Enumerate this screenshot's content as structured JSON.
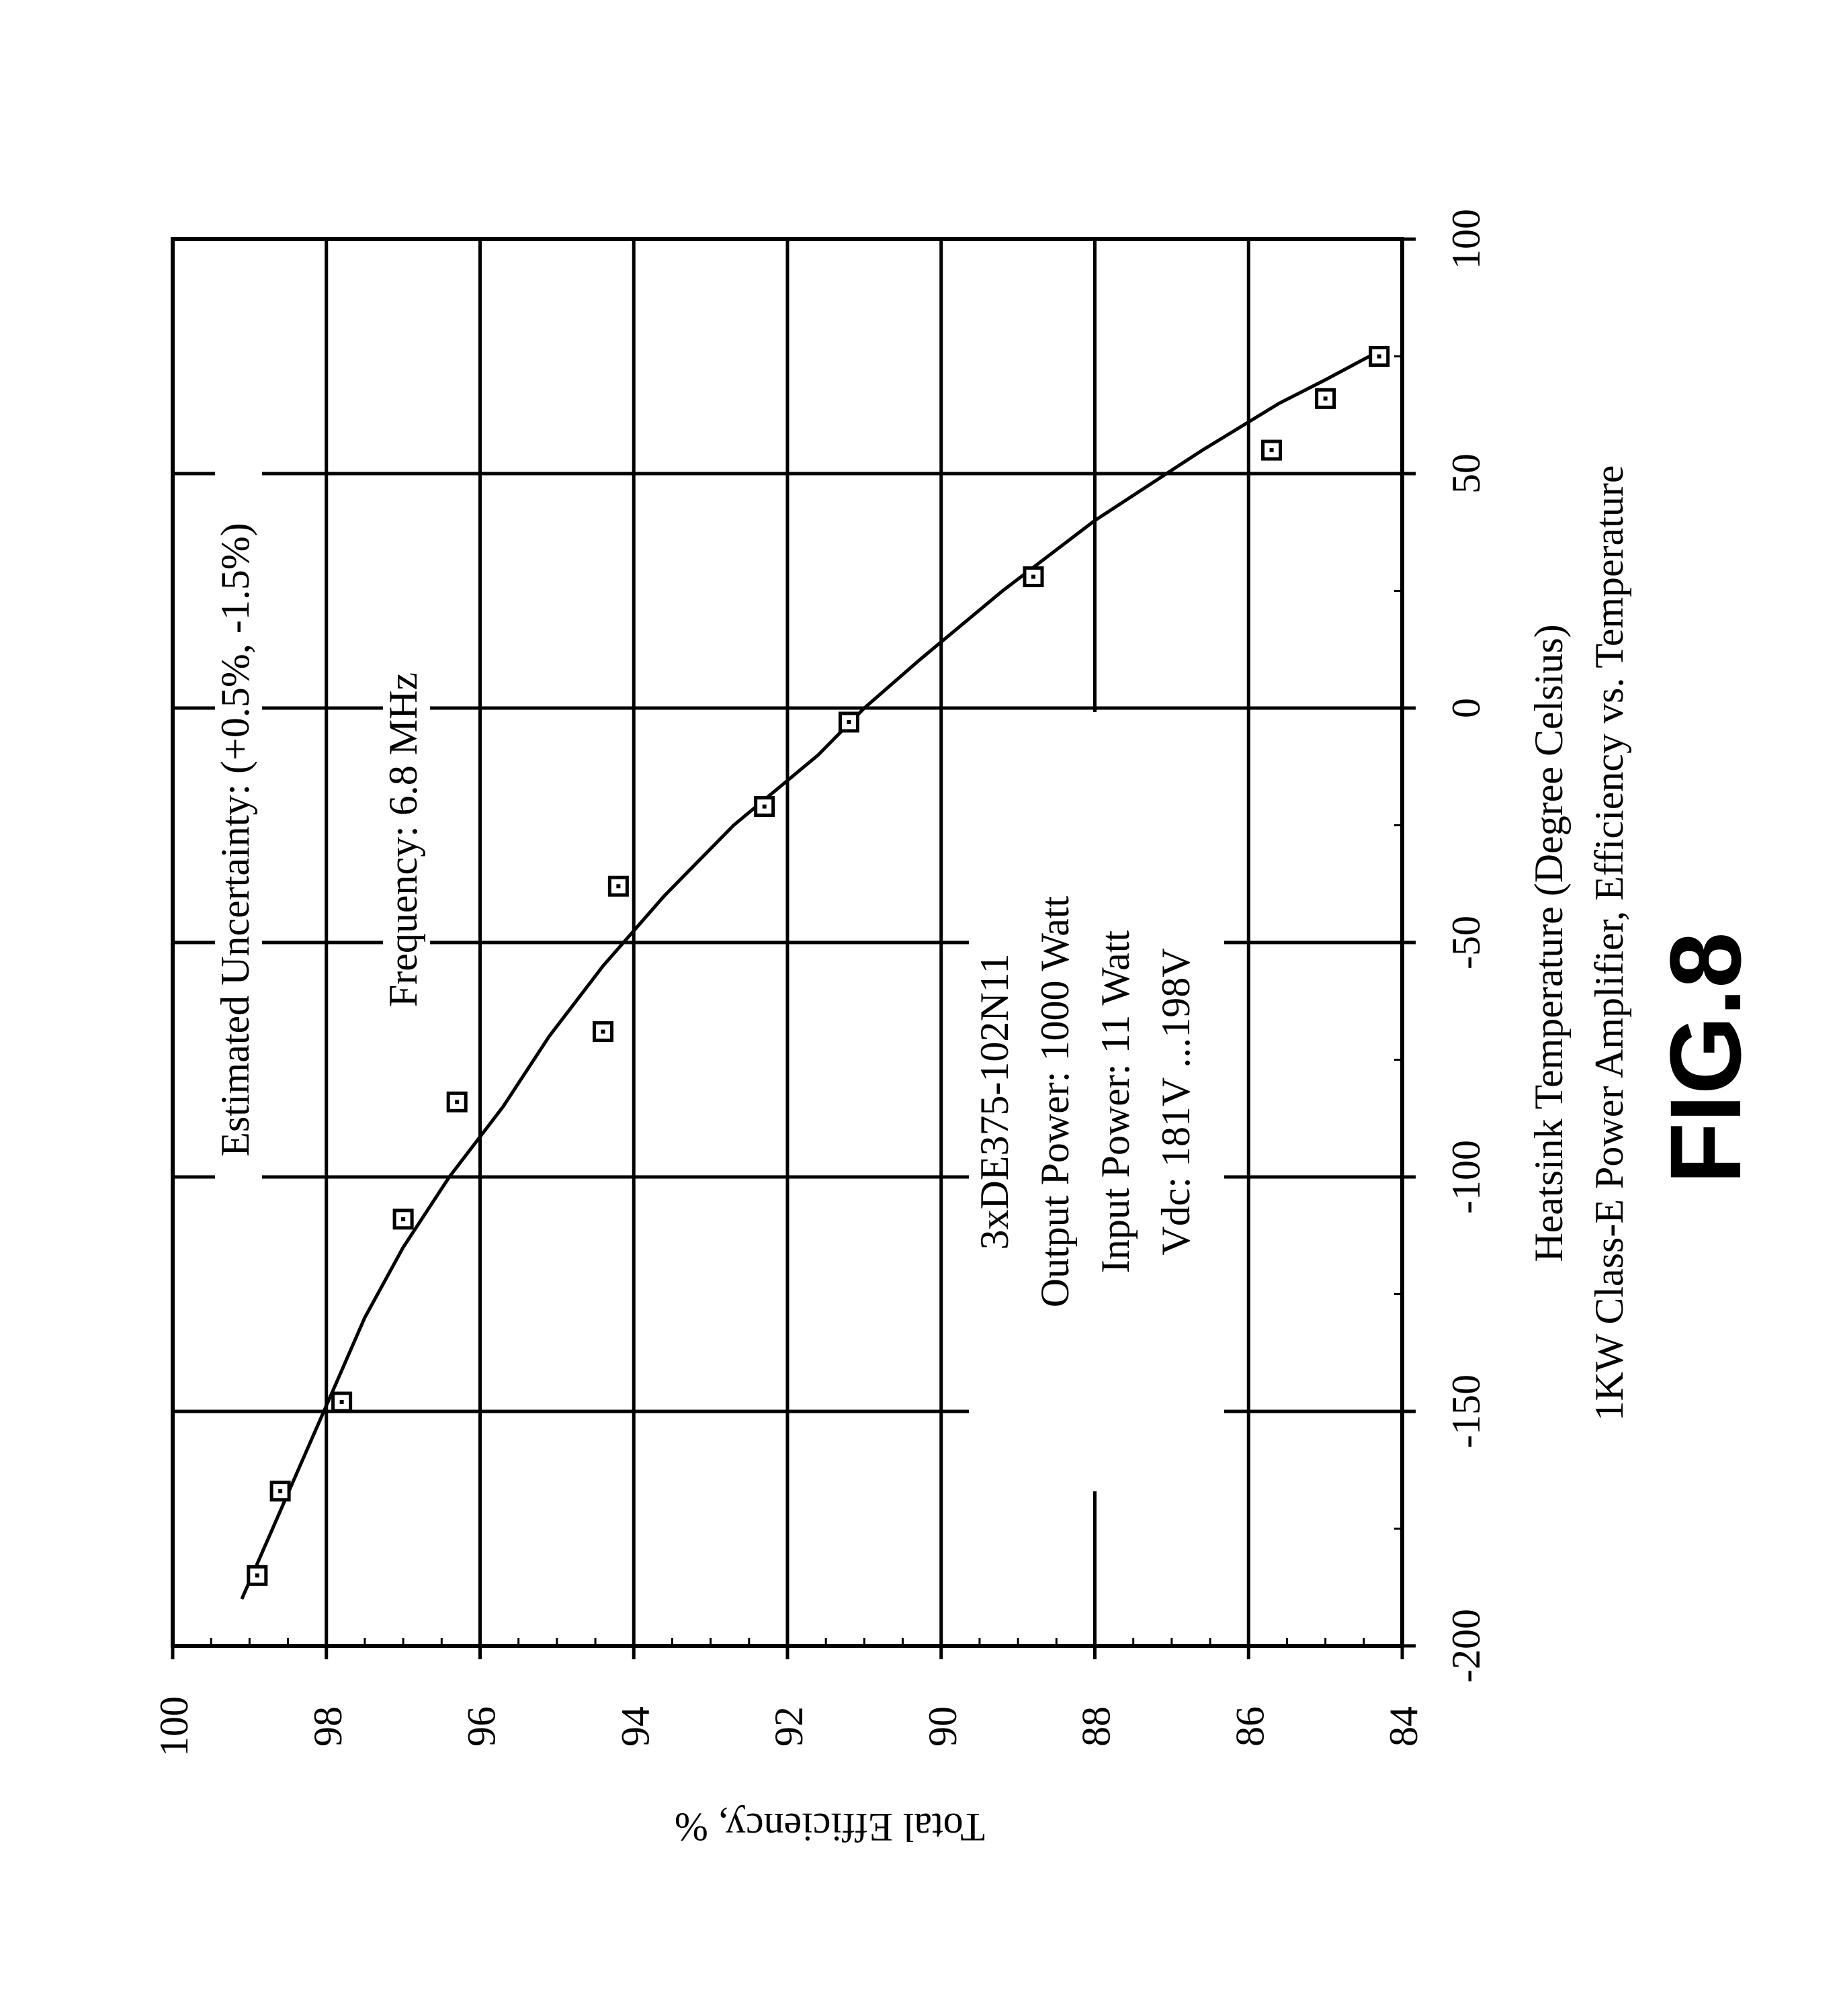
{
  "figure_label": "FIG.8",
  "chart_data": {
    "type": "scatter",
    "title": "1KW Class-E Power Amplifier, Efficiency vs. Temperature",
    "xlabel": "Heatsink Temperature (Degree Celsius)",
    "ylabel": "Total Efficiency, %",
    "xlim": [
      -200,
      100
    ],
    "ylim": [
      84,
      100
    ],
    "x_ticks": [
      -200,
      -150,
      -100,
      -50,
      0,
      50,
      100
    ],
    "y_ticks": [
      84,
      86,
      88,
      90,
      92,
      94,
      96,
      98,
      100
    ],
    "x_tick_labels": [
      "-200",
      "-150",
      "-100",
      "-50",
      "0",
      "50",
      "100"
    ],
    "y_tick_labels": [
      "84",
      "86",
      "88",
      "90",
      "92",
      "94",
      "96",
      "98",
      "100"
    ],
    "grid": true,
    "series": [
      {
        "marker": "square",
        "x": [
          -185,
          -167,
          -148,
          -109,
          -84,
          -69,
          -38,
          -21,
          -3,
          28,
          55,
          66,
          75
        ],
        "y": [
          98.9,
          98.6,
          97.8,
          97.0,
          96.3,
          94.4,
          94.2,
          92.3,
          91.2,
          88.8,
          85.7,
          85.0,
          84.3
        ]
      },
      {
        "style": "line",
        "x": [
          -190,
          -175,
          -160,
          -145,
          -130,
          -115,
          -100,
          -85,
          -70,
          -55,
          -40,
          -25,
          -10,
          0,
          10,
          25,
          40,
          55,
          65,
          70,
          77
        ],
        "y": [
          99.1,
          98.7,
          98.3,
          97.9,
          97.5,
          97.0,
          96.4,
          95.7,
          95.1,
          94.4,
          93.6,
          92.7,
          91.6,
          91.0,
          90.3,
          89.2,
          88.0,
          86.6,
          85.6,
          85.0,
          84.2
        ]
      }
    ],
    "annotations": [
      "Estimated Uncertainty: (+0.5%, -1.5%)",
      "Frequency: 6.8 MHz",
      "3xDE375-102N11",
      "Output Power: 1000 Watt",
      "Input Power: 11 Watt",
      "Vdc: 181V ...198V"
    ]
  }
}
